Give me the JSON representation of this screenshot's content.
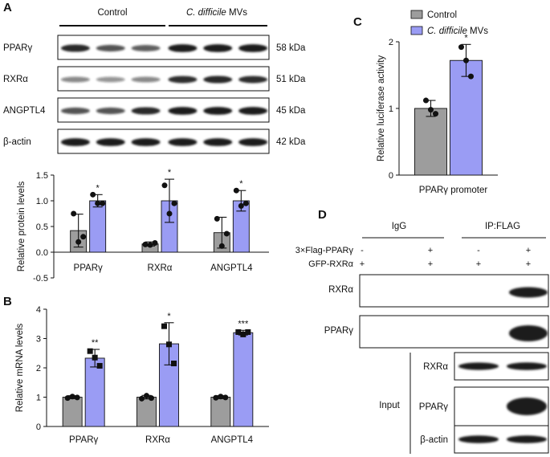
{
  "panels": {
    "A": {
      "letter": "A",
      "groups": [
        {
          "label": "Control",
          "italic": false
        },
        {
          "label": "C. difficile",
          "italic": true,
          "suffix": " MVs"
        }
      ],
      "blots": [
        {
          "name": "PPARγ",
          "size": "58 kDa",
          "intensity": [
            0.8,
            0.6,
            0.55,
            0.95,
            0.95,
            0.95
          ]
        },
        {
          "name": "RXRα",
          "size": "51 kDa",
          "intensity": [
            0.35,
            0.3,
            0.35,
            0.75,
            0.8,
            0.75
          ]
        },
        {
          "name": "ANGPTL4",
          "size": "45 kDa",
          "intensity": [
            0.6,
            0.6,
            0.8,
            0.95,
            0.95,
            0.95
          ]
        },
        {
          "name": "β-actin",
          "size": "42 kDa",
          "intensity": [
            0.95,
            0.95,
            0.95,
            0.95,
            0.95,
            0.95
          ]
        }
      ],
      "chart_data": {
        "type": "bar",
        "ylabel": "Relative protein levels",
        "ylim": [
          -0.5,
          1.5
        ],
        "yticks": [
          "-0.5",
          "0.0",
          "0.5",
          "1.0",
          "1.5"
        ],
        "categories": [
          "PPARγ",
          "RXRα",
          "ANGPTL4"
        ],
        "series": [
          {
            "name": "Control",
            "values": [
              0.42,
              0.16,
              0.38
            ],
            "err": [
              0.32,
              0.04,
              0.3
            ],
            "points": [
              [
                0.75,
                0.2,
                0.3
              ],
              [
                0.15,
                0.14,
                0.18
              ],
              [
                0.65,
                0.12,
                0.36
              ]
            ]
          },
          {
            "name": "C. difficile MVs",
            "values": [
              1.0,
              1.0,
              1.0
            ],
            "err": [
              0.12,
              0.42,
              0.2
            ],
            "points": [
              [
                1.12,
                0.95,
                0.95
              ],
              [
                1.3,
                0.75,
                0.95
              ],
              [
                1.2,
                0.9,
                0.95
              ]
            ]
          }
        ],
        "significance": [
          "*",
          "*",
          "*"
        ]
      }
    },
    "B": {
      "letter": "B",
      "chart_data": {
        "type": "bar",
        "ylabel": "Relative mRNA levels",
        "ylim": [
          0,
          4
        ],
        "yticks": [
          "0",
          "1",
          "2",
          "3",
          "4"
        ],
        "categories": [
          "PPARγ",
          "RXRα",
          "ANGPTL4"
        ],
        "series": [
          {
            "name": "Control",
            "values": [
              1.0,
              1.0,
              1.0
            ],
            "err": [
              0.05,
              0.06,
              0.05
            ],
            "points": [
              [
                0.97,
                1.02,
                0.99
              ],
              [
                0.95,
                1.05,
                0.97
              ],
              [
                0.98,
                1.02,
                0.99
              ]
            ]
          },
          {
            "name": "C. difficile MVs",
            "values": [
              2.33,
              2.82,
              3.2
            ],
            "err": [
              0.3,
              0.72,
              0.08
            ],
            "points": [
              [
                2.57,
                2.35,
                2.07
              ],
              [
                3.42,
                2.8,
                2.15
              ],
              [
                3.22,
                3.14,
                3.22
              ]
            ]
          }
        ],
        "significance": [
          "**",
          "*",
          "***"
        ]
      }
    },
    "C": {
      "letter": "C",
      "chart_data": {
        "type": "bar",
        "ylabel": "Relative  luciferase activity",
        "xlabel": "PPARγ promoter",
        "ylim": [
          0,
          2
        ],
        "yticks": [
          "0",
          "1",
          "2"
        ],
        "categories": [
          ""
        ],
        "series": [
          {
            "name": "Control",
            "values": [
              1.0
            ],
            "err": [
              0.12
            ],
            "points": [
              [
                1.12,
                0.98,
                0.92
              ]
            ]
          },
          {
            "name": "C. difficile MVs",
            "values": [
              1.72
            ],
            "err": [
              0.24
            ],
            "points": [
              [
                1.92,
                1.72,
                1.48
              ]
            ]
          }
        ],
        "significance": [
          "*"
        ],
        "legend": {
          "position": "top",
          "entries": [
            "Control",
            "C. difficile",
            " MVs"
          ]
        }
      }
    },
    "D": {
      "letter": "D",
      "groups": [
        "IgG",
        "IP:FLAG"
      ],
      "conditions": [
        {
          "label": "3×Flag-PPARγ",
          "marks": [
            "-",
            "+",
            "-",
            "+"
          ]
        },
        {
          "label": "GFP-RXRα",
          "marks": [
            "+",
            "+",
            "+",
            "+"
          ]
        }
      ],
      "ip_blots": [
        {
          "name": "RXRα",
          "intensity": [
            0,
            0,
            0,
            0.85
          ]
        },
        {
          "name": "PPARγ",
          "intensity": [
            0,
            0,
            0,
            1.0
          ]
        }
      ],
      "input_label": "Input",
      "input_blots": [
        {
          "name": "RXRα",
          "intensity": [
            0.85,
            0.9
          ]
        },
        {
          "name": "PPARγ",
          "intensity": [
            0,
            1.0
          ]
        },
        {
          "name": "β-actin",
          "intensity": [
            0.9,
            0.9
          ]
        }
      ]
    }
  },
  "colors": {
    "control": "#9d9d9d",
    "treatment": "#9a9cf4",
    "band": "#1a1a1a"
  }
}
